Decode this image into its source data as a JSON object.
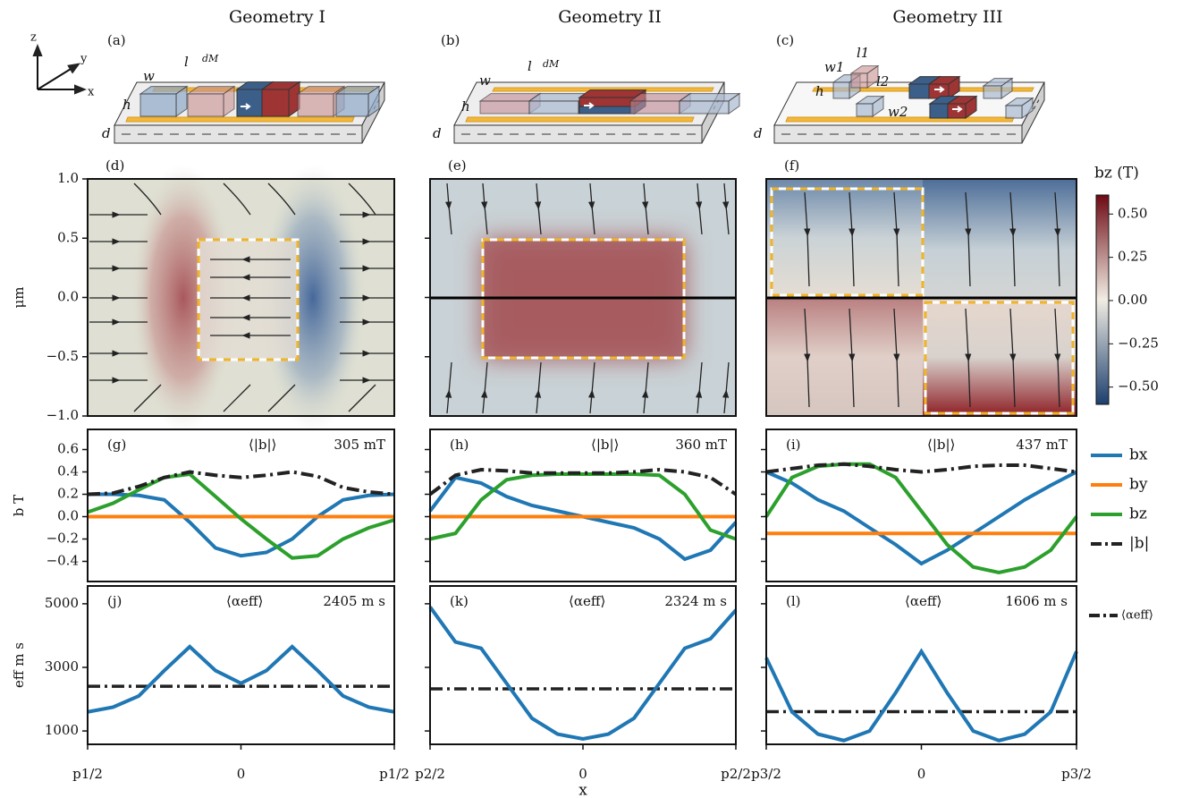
{
  "titles": [
    "Geometry I",
    "Geometry II",
    "Geometry III"
  ],
  "axes_icon": {
    "z": "z",
    "y": "y",
    "x": "x"
  },
  "schematics": [
    {
      "panel": "(a)",
      "dims": [
        "w",
        "l",
        "dM",
        "h",
        "d"
      ]
    },
    {
      "panel": "(b)",
      "dims": [
        "w",
        "l",
        "dM",
        "h",
        "d"
      ]
    },
    {
      "panel": "(c)",
      "dims": [
        "w1",
        "l1",
        "h",
        "l2",
        "w2",
        "d"
      ]
    }
  ],
  "colorbar": {
    "label": "bz (T)",
    "clim": [
      -0.6,
      0.61
    ],
    "ticks": [
      {
        "value": 0.5,
        "label": "0.50"
      },
      {
        "value": 0.25,
        "label": "0.25"
      },
      {
        "value": 0,
        "label": "0.00"
      },
      {
        "value": -0.25,
        "label": "−0.25"
      },
      {
        "value": -0.5,
        "label": "−0.50"
      }
    ],
    "colors": [
      "#1c3f6e",
      "#f1ede4",
      "#6e0a14"
    ]
  },
  "chart_data": [
    {
      "type": "streamplot",
      "panel": "(d)",
      "ylabel": "μm",
      "ylim": [
        -1,
        1
      ],
      "yticks": [
        {
          "value": 1,
          "label": "1.0"
        },
        {
          "value": 0.5,
          "label": "0.5"
        },
        {
          "value": 0,
          "label": "0.0"
        },
        {
          "value": -0.5,
          "label": "−0.5"
        },
        {
          "value": -1,
          "label": "−1.0"
        }
      ]
    },
    {
      "type": "streamplot",
      "panel": "(e)",
      "ylim": [
        -1,
        1
      ],
      "yticks": [
        0.5,
        0,
        -0.5
      ],
      "ytick_labels": false
    },
    {
      "type": "streamplot",
      "panel": "(f)",
      "ylim": [
        -1,
        1
      ]
    },
    {
      "type": "line",
      "panel": "(g)",
      "ylabel": "b  T",
      "annotation": "⟨|b|⟩",
      "annotation_value": "305 mT",
      "xlim": [
        -0.5,
        0.5
      ],
      "ylim": [
        -0.58,
        0.78
      ],
      "yticks": [
        0.6,
        0.4,
        0.2,
        {
          "value": 0,
          "label": "0.0"
        },
        {
          "value": -0.2,
          "label": "−0.2"
        },
        {
          "value": -0.4,
          "label": "−0.4"
        }
      ],
      "x": [
        -0.5,
        -0.417,
        -0.333,
        -0.25,
        -0.167,
        -0.083,
        0,
        0.083,
        0.167,
        0.25,
        0.333,
        0.417,
        0.5
      ],
      "series": [
        {
          "name": "bx",
          "color": "#1f77b4",
          "values": [
            0.2,
            0.2,
            0.19,
            0.15,
            -0.05,
            -0.28,
            -0.35,
            -0.32,
            -0.2,
            0.0,
            0.15,
            0.19,
            0.2
          ]
        },
        {
          "name": "by",
          "color": "#ff7f0e",
          "values": [
            0,
            0,
            0,
            0,
            0,
            0,
            0,
            0,
            0,
            0,
            0,
            0,
            0
          ]
        },
        {
          "name": "bz",
          "color": "#2ca02c",
          "values": [
            0.04,
            0.12,
            0.24,
            0.35,
            0.38,
            0.18,
            -0.02,
            -0.2,
            -0.37,
            -0.35,
            -0.2,
            -0.1,
            -0.03
          ]
        },
        {
          "name": "|b|",
          "color": "#222222",
          "dash": "dashdot",
          "values": [
            0.2,
            0.21,
            0.27,
            0.35,
            0.4,
            0.37,
            0.35,
            0.37,
            0.4,
            0.36,
            0.26,
            0.22,
            0.2
          ]
        }
      ],
      "legend": "right-outside"
    },
    {
      "type": "line",
      "panel": "(h)",
      "annotation": "⟨|b|⟩",
      "annotation_value": "360 mT",
      "xlim": [
        -0.5,
        0.5
      ],
      "ylim": [
        -0.58,
        0.78
      ],
      "yticks": [
        0.6,
        0.4,
        0.2,
        0,
        -0.2,
        -0.4
      ],
      "ytick_labels": false,
      "x": [
        -0.5,
        -0.417,
        -0.333,
        -0.25,
        -0.167,
        -0.083,
        0,
        0.083,
        0.167,
        0.25,
        0.333,
        0.417,
        0.5
      ],
      "series": [
        {
          "color": "#1f77b4",
          "values": [
            0.05,
            0.35,
            0.3,
            0.18,
            0.1,
            0.05,
            0.0,
            -0.05,
            -0.1,
            -0.2,
            -0.38,
            -0.3,
            -0.05
          ]
        },
        {
          "color": "#ff7f0e",
          "values": [
            0,
            0,
            0,
            0,
            0,
            0,
            0,
            0,
            0,
            0,
            0,
            0,
            0
          ]
        },
        {
          "color": "#2ca02c",
          "values": [
            -0.2,
            -0.15,
            0.15,
            0.33,
            0.37,
            0.38,
            0.38,
            0.38,
            0.38,
            0.37,
            0.2,
            -0.12,
            -0.2
          ]
        },
        {
          "color": "#222222",
          "dash": "dashdot",
          "values": [
            0.2,
            0.37,
            0.42,
            0.41,
            0.39,
            0.39,
            0.39,
            0.39,
            0.4,
            0.42,
            0.4,
            0.35,
            0.2
          ]
        }
      ]
    },
    {
      "type": "line",
      "panel": "(i)",
      "annotation": "⟨|b|⟩",
      "annotation_value": "437 mT",
      "xlim": [
        -0.5,
        0.5
      ],
      "ylim": [
        -0.58,
        0.78
      ],
      "yticks": [
        0.6,
        0.4,
        0.2,
        0,
        -0.2,
        -0.4
      ],
      "ytick_labels": false,
      "x": [
        -0.5,
        -0.417,
        -0.333,
        -0.25,
        -0.167,
        -0.083,
        0,
        0.083,
        0.167,
        0.25,
        0.333,
        0.417,
        0.5
      ],
      "series": [
        {
          "color": "#1f77b4",
          "values": [
            0.4,
            0.3,
            0.15,
            0.05,
            -0.1,
            -0.25,
            -0.42,
            -0.3,
            -0.15,
            0.0,
            0.15,
            0.28,
            0.4
          ]
        },
        {
          "color": "#ff7f0e",
          "values": [
            -0.15,
            -0.15,
            -0.15,
            -0.15,
            -0.15,
            -0.15,
            -0.15,
            -0.15,
            -0.15,
            -0.15,
            -0.15,
            -0.15,
            -0.15
          ]
        },
        {
          "color": "#2ca02c",
          "values": [
            0.0,
            0.35,
            0.45,
            0.47,
            0.47,
            0.35,
            0.05,
            -0.25,
            -0.45,
            -0.5,
            -0.45,
            -0.3,
            0.0
          ]
        },
        {
          "color": "#222222",
          "dash": "dashdot",
          "values": [
            0.4,
            0.43,
            0.46,
            0.47,
            0.45,
            0.42,
            0.4,
            0.42,
            0.45,
            0.46,
            0.46,
            0.43,
            0.4
          ]
        }
      ]
    },
    {
      "type": "line",
      "panel": "(j)",
      "ylabel": "eff  m s",
      "xlim": [
        -0.5,
        0.5
      ],
      "ylim": [
        580,
        5560
      ],
      "yticks": [
        5000,
        3000,
        1000
      ],
      "xticks": [
        {
          "value": -0.5,
          "label": "p1/2"
        },
        0,
        {
          "value": 0.5,
          "label": "p1/2"
        }
      ],
      "x": [
        -0.5,
        -0.417,
        -0.333,
        -0.25,
        -0.167,
        -0.083,
        0,
        0.083,
        0.167,
        0.25,
        0.333,
        0.417,
        0.5
      ],
      "series": [
        {
          "color": "#1f77b4",
          "values": [
            1600,
            1750,
            2100,
            2900,
            3650,
            2900,
            2500,
            2900,
            3650,
            2900,
            2100,
            1750,
            1600
          ]
        }
      ],
      "mean": {
        "name": "⟨αeff⟩",
        "value": 2405,
        "value_label": "2405 m s",
        "color": "#222222"
      }
    },
    {
      "type": "line",
      "panel": "(k)",
      "xlabel": "x",
      "xlim": [
        -0.5,
        0.5
      ],
      "ylim": [
        580,
        5560
      ],
      "yticks": [
        5000,
        3000,
        1000
      ],
      "ytick_labels": false,
      "xticks": [
        {
          "value": -0.5,
          "label": "p2/2"
        },
        0,
        {
          "value": 0.5,
          "label": "p2/2"
        }
      ],
      "x": [
        -0.5,
        -0.417,
        -0.333,
        -0.25,
        -0.167,
        -0.083,
        0,
        0.083,
        0.167,
        0.25,
        0.333,
        0.417,
        0.5
      ],
      "series": [
        {
          "color": "#1f77b4",
          "values": [
            4900,
            3800,
            3600,
            2500,
            1400,
            900,
            750,
            900,
            1400,
            2500,
            3600,
            3900,
            4800
          ]
        }
      ],
      "mean": {
        "name": "⟨αeff⟩",
        "value": 2324,
        "value_label": "2324 m s",
        "color": "#222222"
      }
    },
    {
      "type": "line",
      "panel": "(l)",
      "xlim": [
        -0.5,
        0.5
      ],
      "ylim": [
        580,
        5560
      ],
      "yticks": [
        5000,
        3000,
        1000
      ],
      "ytick_labels": false,
      "xticks": [
        {
          "value": -0.5,
          "label": "p3/2"
        },
        0,
        {
          "value": 0.5,
          "label": "p3/2"
        }
      ],
      "x": [
        -0.5,
        -0.417,
        -0.333,
        -0.25,
        -0.167,
        -0.083,
        0,
        0.083,
        0.167,
        0.25,
        0.333,
        0.417,
        0.5
      ],
      "series": [
        {
          "color": "#1f77b4",
          "values": [
            3300,
            1600,
            900,
            700,
            1000,
            2200,
            3500,
            2200,
            1000,
            700,
            900,
            1600,
            3500
          ]
        }
      ],
      "mean": {
        "name": "⟨αeff⟩",
        "value": 1606,
        "value_label": "1606 m s",
        "color": "#222222"
      }
    }
  ]
}
